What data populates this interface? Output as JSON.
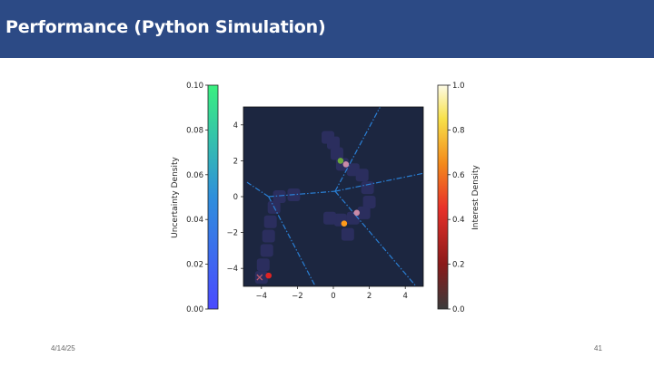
{
  "slide": {
    "title": "Performance (Python Simulation)",
    "date": "4/14/25",
    "page_number": "41",
    "banner_color": "#2c4a85"
  },
  "chart_data": {
    "type": "scatter",
    "x_ticks": [
      "−4",
      "−2",
      "0",
      "2",
      "4"
    ],
    "y_ticks": [
      "4",
      "2",
      "0",
      "−2",
      "−4"
    ],
    "xlim": [
      -5,
      5
    ],
    "ylim": [
      -5,
      5
    ],
    "background_color": "#1c2640",
    "left_colorbar": {
      "label": "Uncertainty Density",
      "ticks": [
        "0.10",
        "0.08",
        "0.06",
        "0.04",
        "0.02",
        "0.00"
      ],
      "range": [
        0.0,
        0.1
      ],
      "colormap": "winter"
    },
    "right_colorbar": {
      "label": "Interest Density",
      "ticks": [
        "1.0",
        "0.8",
        "0.6",
        "0.4",
        "0.2",
        "0.0"
      ],
      "range": [
        0.0,
        1.0
      ],
      "colormap": "hot"
    },
    "uncertainty_blobs": [
      {
        "x": -4.0,
        "y": -4.5
      },
      {
        "x": -3.9,
        "y": -3.8
      },
      {
        "x": -3.7,
        "y": -3.0
      },
      {
        "x": -3.6,
        "y": -2.2
      },
      {
        "x": -3.5,
        "y": -1.4
      },
      {
        "x": -3.3,
        "y": -0.6
      },
      {
        "x": -3.0,
        "y": 0.0
      },
      {
        "x": -2.2,
        "y": 0.1
      },
      {
        "x": -0.3,
        "y": 3.3
      },
      {
        "x": 0.0,
        "y": 3.0
      },
      {
        "x": 0.2,
        "y": 2.4
      },
      {
        "x": 0.5,
        "y": 1.8
      },
      {
        "x": 1.1,
        "y": 1.5
      },
      {
        "x": 1.6,
        "y": 1.2
      },
      {
        "x": 1.9,
        "y": 0.5
      },
      {
        "x": 2.0,
        "y": -0.3
      },
      {
        "x": 1.7,
        "y": -0.9
      },
      {
        "x": 1.1,
        "y": -1.2
      },
      {
        "x": 0.4,
        "y": -1.3
      },
      {
        "x": -0.2,
        "y": -1.2
      },
      {
        "x": 0.8,
        "y": -2.1
      }
    ],
    "voronoi_lines": [
      {
        "x1": -3.6,
        "y1": 0.0,
        "x2": 0.1,
        "y2": 0.3
      },
      {
        "x1": 0.1,
        "y1": 0.3,
        "x2": 5.0,
        "y2": 1.3
      },
      {
        "x1": 0.1,
        "y1": 0.3,
        "x2": 2.6,
        "y2": 5.0
      },
      {
        "x1": 0.1,
        "y1": 0.3,
        "x2": 4.6,
        "y2": -5.0
      },
      {
        "x1": -3.6,
        "y1": 0.0,
        "x2": -4.8,
        "y2": 0.8
      },
      {
        "x1": -3.6,
        "y1": 0.0,
        "x2": -1.0,
        "y2": -5.0
      }
    ],
    "points": [
      {
        "name": "green-dot",
        "x": 0.4,
        "y": 2.0,
        "color": "#6aa73b"
      },
      {
        "name": "pink-dot-upper",
        "x": 0.7,
        "y": 1.8,
        "color": "#c98aa7"
      },
      {
        "name": "pink-dot-middle",
        "x": 1.3,
        "y": -0.9,
        "color": "#c98aa7"
      },
      {
        "name": "orange-dot",
        "x": 0.6,
        "y": -1.5,
        "color": "#ff9a1a"
      },
      {
        "name": "red-dot",
        "x": -3.6,
        "y": -4.4,
        "color": "#e02323"
      }
    ],
    "markers": [
      {
        "name": "start-x-marker",
        "x": -4.1,
        "y": -4.5,
        "color": "#c15a6c"
      }
    ]
  }
}
